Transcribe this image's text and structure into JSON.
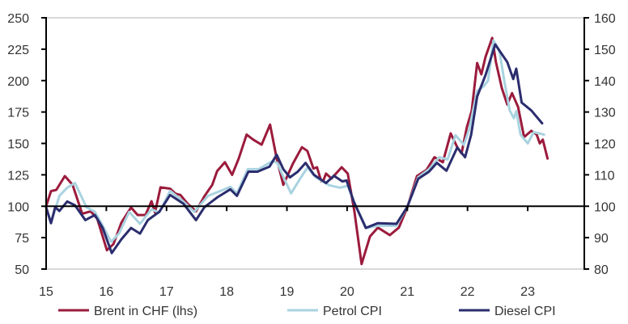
{
  "chart_data": {
    "type": "line",
    "title": "",
    "xlabel": "",
    "ylabel_left": "",
    "ylabel_right": "",
    "xlim": [
      15,
      23.94
    ],
    "ylim_left": [
      50,
      250
    ],
    "ylim_right": [
      80,
      160
    ],
    "x_ticks": [
      "15",
      "16",
      "17",
      "18",
      "19",
      "20",
      "21",
      "22",
      "23"
    ],
    "y_ticks_left": [
      "50",
      "75",
      "100",
      "125",
      "150",
      "175",
      "200",
      "225",
      "250"
    ],
    "y_ticks_right": [
      "80",
      "90",
      "100",
      "110",
      "120",
      "130",
      "140",
      "150",
      "160"
    ],
    "grid": false,
    "reference_line": 100,
    "legend_position": "bottom",
    "series": [
      {
        "name": "Brent in CHF (lhs)",
        "axis": "left",
        "color": "#9b1b3c",
        "x": [
          15.0,
          15.08,
          15.17,
          15.31,
          15.44,
          15.6,
          15.74,
          15.85,
          16.01,
          16.12,
          16.25,
          16.41,
          16.52,
          16.65,
          16.75,
          16.81,
          16.9,
          17.06,
          17.15,
          17.23,
          17.35,
          17.49,
          17.63,
          17.76,
          17.84,
          17.97,
          18.09,
          18.2,
          18.33,
          18.44,
          18.58,
          18.72,
          18.83,
          18.94,
          19.1,
          19.25,
          19.34,
          19.44,
          19.5,
          19.57,
          19.61,
          19.65,
          19.74,
          19.91,
          20.01,
          20.12,
          20.24,
          20.38,
          20.51,
          20.71,
          20.86,
          21.0,
          21.16,
          21.32,
          21.45,
          21.59,
          21.72,
          21.83,
          21.9,
          21.99,
          22.07,
          22.16,
          22.23,
          22.3,
          22.41,
          22.47,
          22.57,
          22.66,
          22.74,
          22.84,
          22.94,
          23.06,
          23.15,
          23.2,
          23.25,
          23.33
        ],
        "y": [
          100,
          112,
          113,
          124,
          117,
          94,
          96,
          90,
          65,
          70,
          87,
          99,
          93,
          93,
          104,
          95,
          115,
          114,
          110,
          109,
          102,
          96,
          108,
          117,
          128,
          135,
          125,
          138,
          157,
          153,
          149,
          165,
          138,
          117,
          134,
          147,
          144,
          130,
          131,
          120,
          121,
          126,
          122,
          131,
          126,
          96,
          54,
          76,
          83,
          77,
          83,
          99,
          124,
          129,
          139,
          135,
          158,
          147,
          142,
          163,
          176,
          214,
          205,
          219,
          234,
          215,
          194,
          181,
          190,
          179,
          155,
          160,
          157,
          150,
          153,
          138
        ]
      },
      {
        "name": "Petrol CPI",
        "axis": "right",
        "color": "#a9d3e0",
        "x": [
          15.01,
          15.08,
          15.22,
          15.35,
          15.48,
          15.67,
          15.81,
          15.94,
          16.08,
          16.21,
          16.38,
          16.56,
          16.75,
          16.88,
          17.06,
          17.28,
          17.46,
          17.69,
          17.9,
          18.06,
          18.17,
          18.35,
          18.53,
          18.76,
          18.84,
          18.96,
          19.07,
          19.21,
          19.34,
          19.48,
          19.7,
          19.88,
          20.01,
          20.15,
          20.32,
          20.51,
          20.82,
          21.0,
          21.18,
          21.36,
          21.53,
          21.67,
          21.8,
          21.94,
          22.03,
          22.16,
          22.27,
          22.34,
          22.43,
          22.53,
          22.61,
          22.7,
          22.77,
          22.81,
          22.88,
          23.0,
          23.1,
          23.27
        ],
        "y": [
          99,
          94.6,
          103.3,
          105.9,
          107.4,
          99.7,
          98.2,
          93.8,
          88.7,
          91.3,
          98.2,
          94.4,
          99,
          98,
          104.9,
          101.5,
          98.2,
          103.3,
          104.9,
          106.2,
          104.1,
          111.8,
          111.8,
          114.4,
          113.8,
          108.5,
          104.1,
          108.5,
          112.3,
          109.2,
          106.7,
          105.9,
          106.5,
          99.8,
          93.1,
          93.8,
          93.8,
          99.8,
          109.2,
          111.8,
          115.6,
          114.9,
          122.6,
          119.5,
          124.6,
          136.7,
          138.2,
          140,
          152.8,
          149.5,
          140,
          130.5,
          128,
          130.3,
          122.8,
          120,
          123.6,
          122.8
        ]
      },
      {
        "name": "Diesel CPI",
        "axis": "right",
        "color": "#2b2d6e",
        "x": [
          15.0,
          15.08,
          15.15,
          15.22,
          15.35,
          15.48,
          15.65,
          15.81,
          15.94,
          16.09,
          16.25,
          16.41,
          16.56,
          16.69,
          16.88,
          17.06,
          17.28,
          17.49,
          17.63,
          17.84,
          18.06,
          18.17,
          18.36,
          18.51,
          18.71,
          18.83,
          18.94,
          19.05,
          19.18,
          19.31,
          19.45,
          19.65,
          19.78,
          19.92,
          19.99,
          20.11,
          20.31,
          20.51,
          20.82,
          21.0,
          21.18,
          21.36,
          21.49,
          21.65,
          21.83,
          21.96,
          22.06,
          22.16,
          22.3,
          22.46,
          22.66,
          22.76,
          22.81,
          22.9,
          23.06,
          23.24
        ],
        "y": [
          99.7,
          94.6,
          99.7,
          98.5,
          101.5,
          100.3,
          95.6,
          97.2,
          93.1,
          85.1,
          89.5,
          93.1,
          91.3,
          95.6,
          98.2,
          103.6,
          100.8,
          95.6,
          99.7,
          102.8,
          105.4,
          103.3,
          111,
          111,
          112.6,
          116.4,
          111.8,
          109.2,
          111,
          113.8,
          110,
          107.4,
          109.7,
          107.9,
          108.2,
          101.5,
          93.1,
          94.6,
          94.4,
          99.8,
          108.7,
          111,
          113.8,
          111.3,
          118.7,
          115.6,
          122.8,
          134.9,
          141.8,
          151.5,
          145.9,
          140.5,
          143.8,
          133,
          130.5,
          126.4
        ]
      }
    ]
  }
}
